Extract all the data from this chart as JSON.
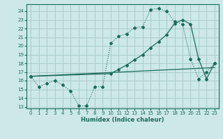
{
  "xlabel": "Humidex (Indice chaleur)",
  "xlim": [
    -0.5,
    23.5
  ],
  "ylim": [
    12.8,
    24.8
  ],
  "xticks": [
    0,
    1,
    2,
    3,
    4,
    5,
    6,
    7,
    8,
    9,
    10,
    11,
    12,
    13,
    14,
    15,
    16,
    17,
    18,
    19,
    20,
    21,
    22,
    23
  ],
  "yticks": [
    13,
    14,
    15,
    16,
    17,
    18,
    19,
    20,
    21,
    22,
    23,
    24
  ],
  "bg_color": "#cce8e8",
  "grid_color": "#aacccc",
  "line_color": "#1a6b5a",
  "curve1_x": [
    0,
    1,
    2,
    3,
    4,
    5,
    6,
    7,
    8,
    9,
    10,
    11,
    12,
    13,
    14,
    15,
    16,
    17,
    18,
    19,
    20,
    21,
    22,
    23
  ],
  "curve1_y": [
    16.5,
    15.3,
    15.7,
    16.0,
    15.5,
    14.8,
    13.1,
    13.1,
    15.3,
    15.3,
    20.3,
    21.1,
    21.4,
    22.1,
    22.2,
    24.2,
    24.3,
    24.0,
    22.8,
    22.5,
    18.5,
    16.2,
    17.0,
    18.0
  ],
  "curve2_x": [
    0,
    10,
    11,
    12,
    13,
    14,
    15,
    16,
    17,
    18,
    19,
    20,
    21,
    22,
    23
  ],
  "curve2_y": [
    16.5,
    16.8,
    17.3,
    17.8,
    18.4,
    19.0,
    19.8,
    20.5,
    21.3,
    22.6,
    23.0,
    22.5,
    18.5,
    16.2,
    18.0
  ],
  "curve3_x": [
    0,
    23
  ],
  "curve3_y": [
    16.5,
    17.5
  ]
}
